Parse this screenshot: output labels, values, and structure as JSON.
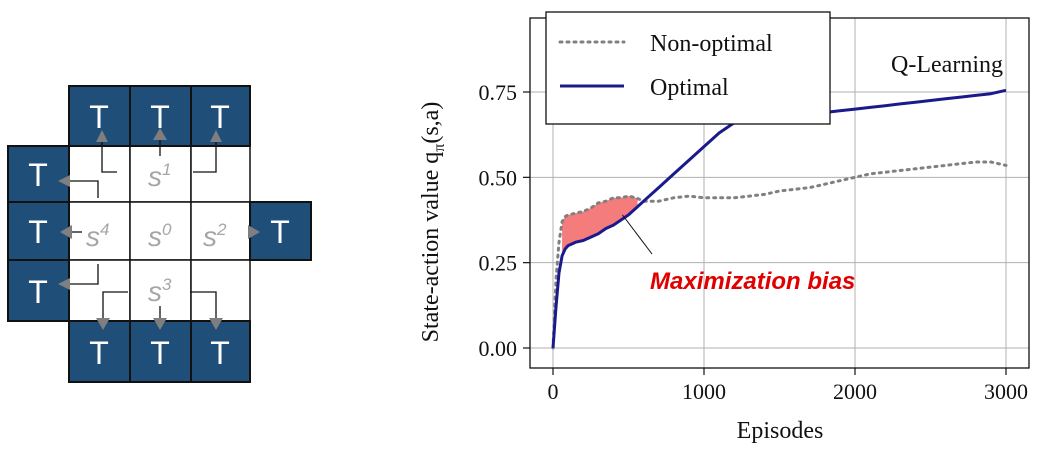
{
  "grid": {
    "terminal_label": "T",
    "states": [
      {
        "name": "s1",
        "base": "s",
        "sup": "1"
      },
      {
        "name": "s0",
        "base": "s",
        "sup": "0"
      },
      {
        "name": "s2",
        "base": "s",
        "sup": "2"
      },
      {
        "name": "s3",
        "base": "s",
        "sup": "3"
      },
      {
        "name": "s4",
        "base": "s",
        "sup": "4"
      }
    ],
    "colors": {
      "terminal": "#1f4e79",
      "state_text": "#a6a6a6"
    }
  },
  "chart_data": {
    "type": "line",
    "title": "Q-Learning",
    "xlabel": "Episodes",
    "ylabel": "State-action value q",
    "ylabel_sub": "π",
    "ylabel_suffix": "(s,a)",
    "xlim": [
      0,
      3000
    ],
    "ylim": [
      0,
      0.76
    ],
    "xticks": [
      0,
      1000,
      2000,
      3000
    ],
    "xtick_labels": [
      "0",
      "1000",
      "2000",
      "3000"
    ],
    "yticks": [
      0.0,
      0.25,
      0.5,
      0.75
    ],
    "ytick_labels": [
      "0.00",
      "0.25",
      "0.50",
      "0.75"
    ],
    "grid": true,
    "legend_position": "top-left",
    "series": [
      {
        "name": "Non-optimal",
        "style": "dotted",
        "color": "#808080",
        "x": [
          0,
          20,
          40,
          60,
          80,
          100,
          150,
          200,
          250,
          300,
          350,
          400,
          450,
          500,
          550,
          600,
          700,
          800,
          900,
          1000,
          1100,
          1200,
          1300,
          1400,
          1500,
          1600,
          1700,
          1800,
          1900,
          2000,
          2100,
          2200,
          2300,
          2400,
          2500,
          2600,
          2700,
          2800,
          2900,
          3000
        ],
        "y": [
          0.0,
          0.2,
          0.31,
          0.37,
          0.385,
          0.39,
          0.395,
          0.4,
          0.41,
          0.425,
          0.43,
          0.44,
          0.44,
          0.445,
          0.44,
          0.43,
          0.43,
          0.44,
          0.445,
          0.44,
          0.44,
          0.44,
          0.445,
          0.45,
          0.46,
          0.465,
          0.47,
          0.48,
          0.49,
          0.5,
          0.51,
          0.515,
          0.52,
          0.525,
          0.53,
          0.535,
          0.54,
          0.545,
          0.545,
          0.535
        ]
      },
      {
        "name": "Optimal",
        "style": "solid",
        "color": "#1a1a8c",
        "x": [
          0,
          20,
          40,
          60,
          80,
          100,
          150,
          200,
          250,
          300,
          350,
          400,
          450,
          500,
          550,
          600,
          700,
          800,
          900,
          1000,
          1100,
          1200,
          1300,
          1400,
          1500,
          1600,
          1700,
          1800,
          1900,
          2000,
          2100,
          2200,
          2300,
          2400,
          2500,
          2600,
          2700,
          2800,
          2900,
          3000
        ],
        "y": [
          0.0,
          0.12,
          0.22,
          0.27,
          0.29,
          0.3,
          0.31,
          0.315,
          0.325,
          0.335,
          0.35,
          0.36,
          0.375,
          0.39,
          0.41,
          0.43,
          0.47,
          0.51,
          0.55,
          0.59,
          0.63,
          0.66,
          0.675,
          0.685,
          0.69,
          0.69,
          0.69,
          0.69,
          0.695,
          0.7,
          0.705,
          0.71,
          0.715,
          0.72,
          0.725,
          0.73,
          0.735,
          0.74,
          0.745,
          0.755
        ]
      }
    ],
    "shaded_region": {
      "x_start": 60,
      "x_end": 560,
      "color": "#f47c7c"
    },
    "annotation": {
      "text": "Maximization bias",
      "point_x": 460,
      "point_y": 0.39,
      "color": "#e00000"
    }
  }
}
